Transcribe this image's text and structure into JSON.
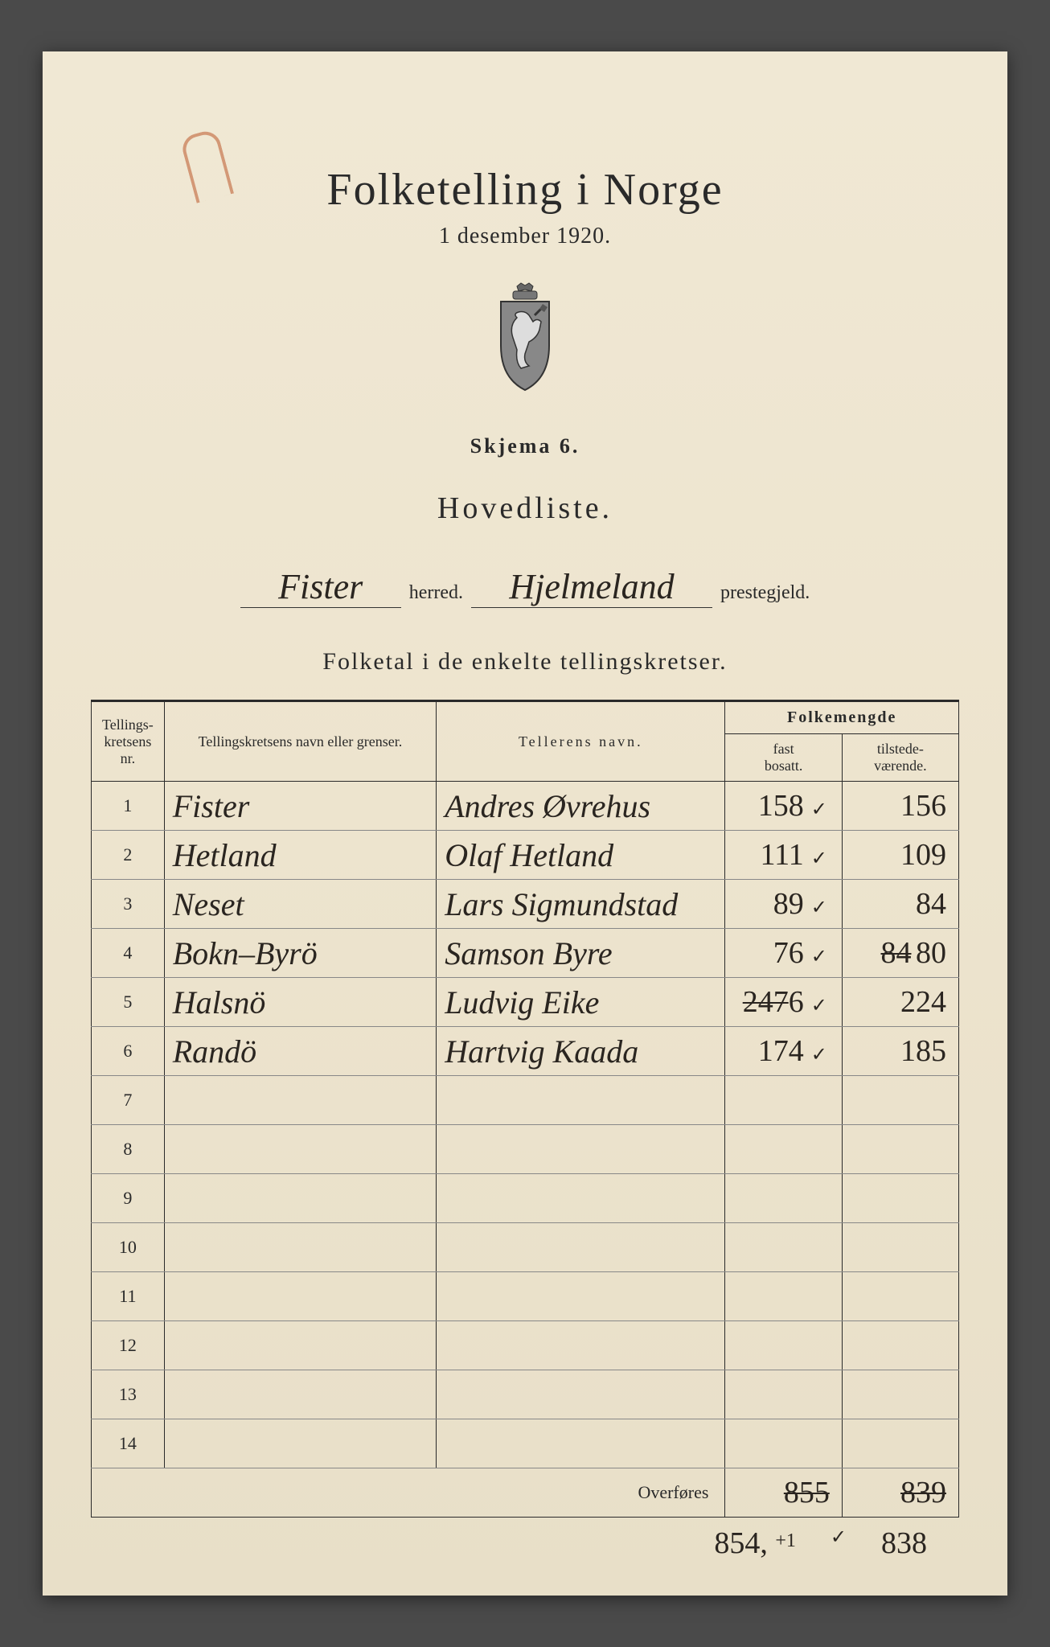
{
  "header": {
    "title": "Folketelling i Norge",
    "subtitle": "1 desember 1920.",
    "skjema": "Skjema 6.",
    "hovedliste": "Hovedliste."
  },
  "fill": {
    "herred_value": "Fister",
    "herred_label": "herred.",
    "prestegjeld_value": "Hjelmeland",
    "prestegjeld_label": "prestegjeld."
  },
  "section_heading": "Folketal i de enkelte tellingskretser.",
  "table": {
    "headers": {
      "nr": "Tellings-\nkretsens\nnr.",
      "navn": "Tellingskretsens navn eller grenser.",
      "teller": "Tellerens navn.",
      "folkemengde": "Folkemengde",
      "fast": "fast\nbosatt.",
      "tilstede": "tilstede-\nværende."
    },
    "rows": [
      {
        "nr": "1",
        "navn": "Fister",
        "teller": "Andres Øvrehus",
        "fast": "158",
        "check": "✓",
        "tilstede": "156"
      },
      {
        "nr": "2",
        "navn": "Hetland",
        "teller": "Olaf Hetland",
        "fast": "111",
        "check": "✓",
        "tilstede": "109"
      },
      {
        "nr": "3",
        "navn": "Neset",
        "teller": "Lars Sigmundstad",
        "fast": "89",
        "check": "✓",
        "tilstede": "84"
      },
      {
        "nr": "4",
        "navn": "Bokn–Byrö",
        "teller": "Samson Byre",
        "fast": "76",
        "check": "✓",
        "tilstede_strike": "84",
        "tilstede": "80"
      },
      {
        "nr": "5",
        "navn": "Halsnö",
        "teller": "Ludvig Eike",
        "fast_strike": "247",
        "fast": "6",
        "check": "✓",
        "tilstede": "224"
      },
      {
        "nr": "6",
        "navn": "Randö",
        "teller": "Hartvig Kaada",
        "fast": "174",
        "check": "✓",
        "tilstede": "185"
      },
      {
        "nr": "7"
      },
      {
        "nr": "8"
      },
      {
        "nr": "9"
      },
      {
        "nr": "10"
      },
      {
        "nr": "11"
      },
      {
        "nr": "12"
      },
      {
        "nr": "13"
      },
      {
        "nr": "14"
      }
    ],
    "overfores_label": "Overføres",
    "overfores_fast": "855",
    "overfores_tilstede": "839",
    "corrected_fast": "854,",
    "corrected_note": "+1",
    "corrected_check": "✓",
    "corrected_tilstede": "838"
  },
  "colors": {
    "paper": "#ede4ce",
    "ink": "#2a2a2a",
    "handwriting": "#2a2520",
    "paperclip": "#c87850",
    "background": "#4a4a4a"
  },
  "typography": {
    "title_fontsize": 56,
    "subtitle_fontsize": 28,
    "heading_fontsize": 38,
    "body_fontsize": 22,
    "handwriting_fontsize": 40
  }
}
